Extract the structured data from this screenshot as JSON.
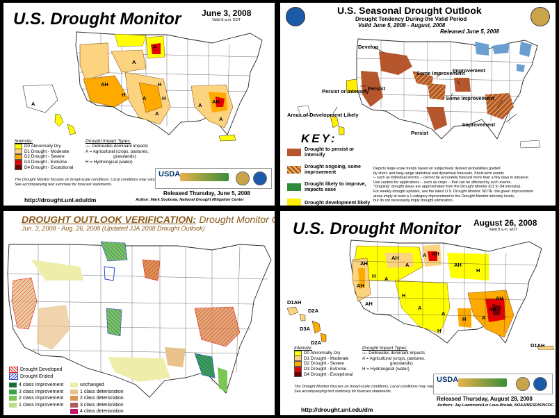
{
  "panels": {
    "p1": {
      "title": "U.S. Drought Monitor",
      "date": "June 3, 2008",
      "valid": "Valid 8 a.m. EDT",
      "intensity_title": "Intensity:",
      "intensity": [
        {
          "label": "D0 Abnormally Dry",
          "color": "#ffff00"
        },
        {
          "label": "D1 Drought - Moderate",
          "color": "#fcd37f"
        },
        {
          "label": "D2 Drought - Severe",
          "color": "#ffaa00"
        },
        {
          "label": "D3 Drought - Extreme",
          "color": "#e60000"
        },
        {
          "label": "D4 Drought - Exceptional",
          "color": "#730000"
        }
      ],
      "impact_title": "Drought Impact Types:",
      "impact": [
        "Delineates dominant impacts",
        "A = Agricultural (crops, pastures,",
        "grasslands)",
        "H = Hydrological (water)"
      ],
      "note": "The Drought Monitor focuses on broad-scale conditions. Local conditions may vary. See accompanying text summary for forecast statements.",
      "released": "Released Thursday, June 5, 2008",
      "author": "Author: Mark Svoboda, National Drought Mitigation Center",
      "url": "http://drought.unl.edu/dm",
      "usda": "USDA",
      "map_labels": [
        "A",
        "AH",
        "A",
        "A",
        "H",
        "H",
        "A",
        "A",
        "A",
        "AH",
        "A",
        "H"
      ]
    },
    "p2": {
      "title": "U.S. Seasonal Drought Outlook",
      "subtitle": "Drought Tendency During the Valid Period",
      "valid": "Valid June 5, 2008 - August, 2008",
      "released": "Released June 5, 2008",
      "key_title": "KEY:",
      "key": [
        {
          "label": "Drought to persist or intensify",
          "color": "#b5562d"
        },
        {
          "label": "Drought ongoing, some improvement",
          "color": "#b5562d"
        },
        {
          "label": "Drought likely to improve, impacts ease",
          "color": "#2e8b3a"
        },
        {
          "label": "Drought development likely",
          "color": "#ffee00"
        }
      ],
      "map_labels": {
        "develop": "Develop",
        "persist_w": "Persist",
        "some_impr_1": "Some Improvement",
        "improvement_1": "Improvement",
        "some_impr_2": "Some Improvement",
        "persist_tx": "Persist",
        "improvement_2": "Improvement",
        "persist_or_intensify": "Persist or Intensify",
        "areas_dev": "Areas of Development Likely"
      },
      "paragraph": [
        "Depicts large-scale trends based on subjectively derived probabilities guided",
        "by short- and long-range statistical and dynamical forecasts. Short-term events",
        "-- such as individual storms -- cannot be accurately forecast more than a few days in advance.",
        "Use caution for applications -- such as crops -- that can be affected by such events.",
        "\"Ongoing\" drought areas are approximated from the Drought Monitor (D1 to D4 intensity).",
        "For weekly drought updates, see the latest U.S. Drought Monitor. NOTE: the green improvement",
        "areas imply at least a 1-category improvement in the Drought Monitor intensity levels,",
        "but do not necessarily imply drought elimination."
      ]
    },
    "p3": {
      "title_a": "DROUGHT OUTLOOK VERIFICATION:",
      "title_b": "Drought Monitor Change",
      "subtitle": "Jun. 3, 2008 - Aug. 26, 2008 (Updated JJA 2008 Drought Outlook)",
      "developed": "Drought Developed",
      "ended": "Drought Ended",
      "legend_left": [
        {
          "label": "4 class improvement",
          "color": "#1a6b3c"
        },
        {
          "label": "3 class improvement",
          "color": "#3aa04a"
        },
        {
          "label": "2 class improvement",
          "color": "#7cc655"
        },
        {
          "label": "1 class improvement",
          "color": "#b9e08a"
        }
      ],
      "legend_right": [
        {
          "label": "unchanged",
          "color": "#eeeeaa"
        },
        {
          "label": "1 class deterioration",
          "color": "#e8c28a"
        },
        {
          "label": "2 class deterioration",
          "color": "#d99455"
        },
        {
          "label": "3 class deterioration",
          "color": "#b05c5c"
        },
        {
          "label": "4 class deterioration",
          "color": "#c0176b"
        }
      ]
    },
    "p4": {
      "title": "U.S. Drought Monitor",
      "date": "August 26, 2008",
      "valid": "Valid 8 a.m. EDT",
      "intensity_title": "Intensity:",
      "intensity": [
        {
          "label": "D0 Abnormally Dry",
          "color": "#ffff00"
        },
        {
          "label": "D1 Drought - Moderate",
          "color": "#fcd37f"
        },
        {
          "label": "D2 Drought - Severe",
          "color": "#ffaa00"
        },
        {
          "label": "D3 Drought - Extreme",
          "color": "#e60000"
        },
        {
          "label": "D4 Drought - Exceptional",
          "color": "#730000"
        }
      ],
      "impact_title": "Drought Impact Types:",
      "impact": [
        "Delineates dominant impacts",
        "A = Agricultural (crops, pastures,",
        "grasslands)",
        "H = Hydrological (water)"
      ],
      "note": "The Drought Monitor focuses on broad-scale conditions. Local conditions may vary. See accompanying text summary for forecast statements.",
      "released": "Released Thursday, August 28, 2008",
      "author": "Authors: Jay Lawrimore/Liz Love-Brotak, NOAA/NESDIS/NCDC",
      "url": "http://drought.unl.edu/dm",
      "usda": "USDA",
      "hi_labels": [
        "D1AH",
        "D2A",
        "D3A",
        "D2A"
      ],
      "pr_label": "D1AH",
      "map_labels": [
        "AH",
        "AH",
        "A",
        "A",
        "AH",
        "AH",
        "H",
        "A",
        "AH",
        "AH",
        "H",
        "AH",
        "A",
        "A",
        "H",
        "A",
        "H",
        "AH",
        "H"
      ]
    }
  }
}
